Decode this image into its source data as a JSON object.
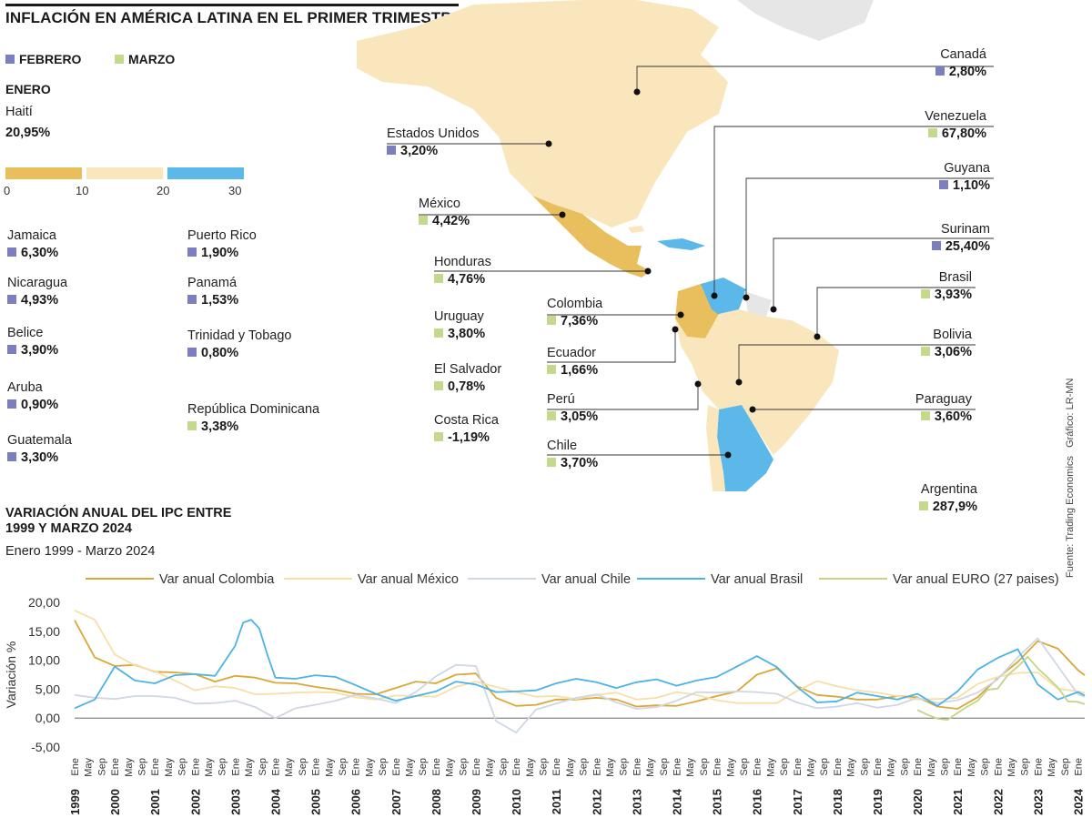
{
  "header": {
    "title": "INFLACIÓN EN AMÉRICA LATINA EN EL PRIMER TRIMESTRE"
  },
  "legend": {
    "febrero": "FEBRERO",
    "marzo": "MARZO",
    "enero": "ENERO",
    "colors": {
      "febrero": "#7b7fbf",
      "marzo": "#c5d98c"
    }
  },
  "enero_item": {
    "name": "Haití",
    "value": "20,95%"
  },
  "scale": {
    "ticks": [
      "0",
      "10",
      "20",
      "30"
    ],
    "colors": [
      "#e8bf5c",
      "#fae6bd",
      "#5bb8e8"
    ]
  },
  "left_list": [
    {
      "name": "Jamaica",
      "value": "6,30%",
      "month": "febrero"
    },
    {
      "name": "Nicaragua",
      "value": "4,93%",
      "month": "febrero"
    },
    {
      "name": "Belice",
      "value": "3,90%",
      "month": "febrero"
    },
    {
      "name": "Aruba",
      "value": "0,90%",
      "month": "febrero"
    },
    {
      "name": "Guatemala",
      "value": "3,30%",
      "month": "febrero"
    }
  ],
  "mid_list": [
    {
      "name": "Puerto Rico",
      "value": "1,90%",
      "month": "febrero"
    },
    {
      "name": "Panamá",
      "value": "1,53%",
      "month": "febrero"
    },
    {
      "name": "Trinidad y Tobago",
      "value": "0,80%",
      "month": "febrero"
    },
    {
      "name": "República Dominicana",
      "value": "3,38%",
      "month": "marzo"
    }
  ],
  "map_center": [
    {
      "name": "Estados Unidos",
      "value": "3,20%",
      "month": "febrero"
    },
    {
      "name": "México",
      "value": "4,42%",
      "month": "marzo"
    },
    {
      "name": "Honduras",
      "value": "4,76%",
      "month": "marzo"
    },
    {
      "name": "Uruguay",
      "value": "3,80%",
      "month": "marzo"
    },
    {
      "name": "El Salvador",
      "value": "0,78%",
      "month": "marzo"
    },
    {
      "name": "Costa Rica",
      "value": "-1,19%",
      "month": "marzo"
    },
    {
      "name": "Colombia",
      "value": "7,36%",
      "month": "marzo"
    },
    {
      "name": "Ecuador",
      "value": "1,66%",
      "month": "marzo"
    },
    {
      "name": "Perú",
      "value": "3,05%",
      "month": "marzo"
    },
    {
      "name": "Chile",
      "value": "3,70%",
      "month": "marzo"
    }
  ],
  "map_right": [
    {
      "name": "Canadá",
      "value": "2,80%",
      "month": "febrero"
    },
    {
      "name": "Venezuela",
      "value": "67,80%",
      "month": "marzo"
    },
    {
      "name": "Guyana",
      "value": "1,10%",
      "month": "febrero"
    },
    {
      "name": "Surinam",
      "value": "25,40%",
      "month": "febrero"
    },
    {
      "name": "Brasil",
      "value": "3,93%",
      "month": "marzo"
    },
    {
      "name": "Bolivia",
      "value": "3,06%",
      "month": "marzo"
    },
    {
      "name": "Paraguay",
      "value": "3,60%",
      "month": "marzo"
    },
    {
      "name": "Argentina",
      "value": "287,9%",
      "month": "marzo"
    }
  ],
  "source": {
    "line1": "Fuente: Trading Economics",
    "line2": "Gráfico: LR-MN"
  },
  "chart_data": {
    "type": "line",
    "title": "VARIACIÓN ANUAL DEL IPC ENTRE 1999 Y MARZO 2024",
    "subtitle": "Enero 1999 - Marzo 2024",
    "ylabel": "Variación %",
    "ylim": [
      -5,
      20
    ],
    "yticks": [
      "20,00",
      "15,00",
      "10,00",
      "5,00",
      "0,00",
      "-5,00"
    ],
    "xlim": [
      1999.0,
      2024.17
    ],
    "years": [
      "1999",
      "2000",
      "2001",
      "2002",
      "2003",
      "2004",
      "2005",
      "2006",
      "2007",
      "2008",
      "2009",
      "2010",
      "2011",
      "2012",
      "2013",
      "2014",
      "2015",
      "2016",
      "2017",
      "2018",
      "2019",
      "2020",
      "2021",
      "2022",
      "2023",
      "2024"
    ],
    "month_ticks": [
      "Ene",
      "May",
      "Sep"
    ],
    "grid": false,
    "legend_position": "top",
    "series": [
      {
        "name": "Var anual Colombia",
        "color": "#d9a838",
        "x": [
          1999.0,
          1999.5,
          2000.0,
          2000.5,
          2001.0,
          2001.5,
          2002.0,
          2002.5,
          2003.0,
          2003.5,
          2004.0,
          2004.5,
          2005.0,
          2005.5,
          2006.0,
          2006.5,
          2007.0,
          2007.5,
          2008.0,
          2008.5,
          2009.0,
          2009.5,
          2010.0,
          2010.5,
          2011.0,
          2011.5,
          2012.0,
          2012.5,
          2013.0,
          2013.5,
          2014.0,
          2014.5,
          2015.0,
          2015.5,
          2016.0,
          2016.5,
          2017.0,
          2017.5,
          2018.0,
          2018.5,
          2019.0,
          2019.5,
          2020.0,
          2020.5,
          2021.0,
          2021.5,
          2022.0,
          2022.5,
          2023.0,
          2023.5,
          2024.0,
          2024.17
        ],
        "y": [
          16.9,
          10.5,
          9.0,
          9.2,
          8.0,
          7.9,
          7.6,
          6.3,
          7.3,
          7.0,
          6.1,
          6.0,
          5.4,
          4.9,
          4.2,
          4.1,
          5.2,
          6.3,
          6.0,
          7.5,
          7.7,
          3.5,
          2.1,
          2.3,
          3.2,
          3.2,
          3.5,
          3.2,
          2.0,
          2.2,
          2.1,
          2.9,
          3.8,
          4.6,
          7.5,
          8.6,
          5.5,
          4.0,
          3.7,
          3.2,
          3.2,
          3.8,
          3.6,
          2.0,
          1.6,
          3.6,
          6.9,
          9.7,
          13.3,
          12.0,
          8.3,
          7.4
        ]
      },
      {
        "name": "Var anual México",
        "color": "#f7dfa6",
        "x": [
          1999.0,
          1999.5,
          2000.0,
          2000.5,
          2001.0,
          2001.5,
          2002.0,
          2002.5,
          2003.0,
          2003.5,
          2004.0,
          2004.5,
          2005.0,
          2005.5,
          2006.0,
          2006.5,
          2007.0,
          2007.5,
          2008.0,
          2008.5,
          2009.0,
          2009.5,
          2010.0,
          2010.5,
          2011.0,
          2011.5,
          2012.0,
          2012.5,
          2013.0,
          2013.5,
          2014.0,
          2014.5,
          2015.0,
          2015.5,
          2016.0,
          2016.5,
          2017.0,
          2017.5,
          2018.0,
          2018.5,
          2019.0,
          2019.5,
          2020.0,
          2020.5,
          2021.0,
          2021.5,
          2022.0,
          2022.5,
          2023.0,
          2023.5,
          2024.0,
          2024.17
        ],
        "y": [
          18.6,
          17.0,
          11.0,
          9.1,
          8.1,
          6.5,
          4.8,
          5.5,
          5.2,
          4.1,
          4.2,
          4.4,
          4.5,
          4.4,
          3.6,
          3.2,
          3.9,
          3.8,
          3.7,
          5.4,
          6.3,
          5.4,
          4.5,
          3.7,
          3.8,
          3.3,
          4.0,
          4.4,
          3.2,
          3.5,
          4.5,
          4.0,
          3.1,
          2.6,
          2.6,
          2.6,
          4.7,
          6.4,
          5.5,
          4.8,
          4.4,
          3.8,
          3.2,
          3.3,
          3.5,
          5.9,
          7.1,
          7.8,
          7.9,
          5.1,
          4.6,
          4.4
        ]
      },
      {
        "name": "Var anual Chile",
        "color": "#cfd6e4",
        "x": [
          1999.0,
          1999.5,
          2000.0,
          2000.5,
          2001.0,
          2001.5,
          2002.0,
          2002.5,
          2003.0,
          2003.5,
          2004.0,
          2004.5,
          2005.0,
          2005.5,
          2006.0,
          2006.5,
          2007.0,
          2007.5,
          2008.0,
          2008.5,
          2009.0,
          2009.5,
          2010.0,
          2010.5,
          2011.0,
          2011.5,
          2012.0,
          2012.5,
          2013.0,
          2013.5,
          2014.0,
          2014.5,
          2015.0,
          2015.5,
          2016.0,
          2016.5,
          2017.0,
          2017.5,
          2018.0,
          2018.5,
          2019.0,
          2019.5,
          2020.0,
          2020.5,
          2021.0,
          2021.5,
          2022.0,
          2022.5,
          2023.0,
          2023.5,
          2024.0,
          2024.17
        ],
        "y": [
          4.0,
          3.5,
          3.3,
          3.8,
          3.8,
          3.5,
          2.5,
          2.6,
          3.0,
          1.9,
          0.0,
          1.7,
          2.3,
          3.0,
          4.0,
          3.4,
          2.6,
          4.5,
          7.2,
          9.2,
          9.0,
          -0.5,
          -2.5,
          1.5,
          2.5,
          3.5,
          4.1,
          2.7,
          1.6,
          1.9,
          3.0,
          4.5,
          4.4,
          4.6,
          4.5,
          4.2,
          2.7,
          1.7,
          2.0,
          2.6,
          1.8,
          2.3,
          3.5,
          2.6,
          3.1,
          4.4,
          6.7,
          10.5,
          13.8,
          9.0,
          4.1,
          3.7
        ]
      },
      {
        "name": "Var anual Brasil",
        "color": "#4cb3e6",
        "x": [
          1999.0,
          1999.5,
          2000.0,
          2000.5,
          2001.0,
          2001.5,
          2002.0,
          2002.5,
          2003.0,
          2003.2,
          2003.4,
          2003.6,
          2003.8,
          2004.0,
          2004.5,
          2005.0,
          2005.5,
          2006.0,
          2006.5,
          2007.0,
          2007.5,
          2008.0,
          2008.5,
          2009.0,
          2009.5,
          2010.0,
          2010.5,
          2011.0,
          2011.5,
          2012.0,
          2012.5,
          2013.0,
          2013.5,
          2014.0,
          2014.5,
          2015.0,
          2015.5,
          2016.0,
          2016.5,
          2017.0,
          2017.5,
          2018.0,
          2018.5,
          2019.0,
          2019.5,
          2020.0,
          2020.5,
          2021.0,
          2021.5,
          2022.0,
          2022.5,
          2023.0,
          2023.5,
          2024.0,
          2024.17
        ],
        "y": [
          1.7,
          3.2,
          8.9,
          6.5,
          6.0,
          7.4,
          7.6,
          7.3,
          12.5,
          16.5,
          17.0,
          15.5,
          11.0,
          7.0,
          6.8,
          7.4,
          7.1,
          5.7,
          4.2,
          3.0,
          3.8,
          4.6,
          6.3,
          5.8,
          4.5,
          4.6,
          4.8,
          6.0,
          6.8,
          6.2,
          5.2,
          6.2,
          6.7,
          5.6,
          6.5,
          7.1,
          8.9,
          10.7,
          8.8,
          5.4,
          2.7,
          2.9,
          4.4,
          3.8,
          3.2,
          4.2,
          2.1,
          4.6,
          8.4,
          10.4,
          11.9,
          5.8,
          3.2,
          4.5,
          3.9
        ]
      },
      {
        "name": "Var anual EURO (27 paises)",
        "color": "#c3d48a",
        "x": [
          2020.0,
          2020.25,
          2020.5,
          2020.75,
          2021.0,
          2021.25,
          2021.5,
          2021.75,
          2022.0,
          2022.25,
          2022.5,
          2022.75,
          2023.0,
          2023.25,
          2023.5,
          2023.75,
          2024.0,
          2024.17
        ],
        "y": [
          1.4,
          0.6,
          -0.1,
          -0.3,
          0.9,
          2.0,
          3.0,
          4.9,
          5.1,
          7.4,
          8.9,
          10.6,
          8.6,
          7.0,
          5.3,
          2.9,
          2.8,
          2.4
        ]
      }
    ]
  }
}
